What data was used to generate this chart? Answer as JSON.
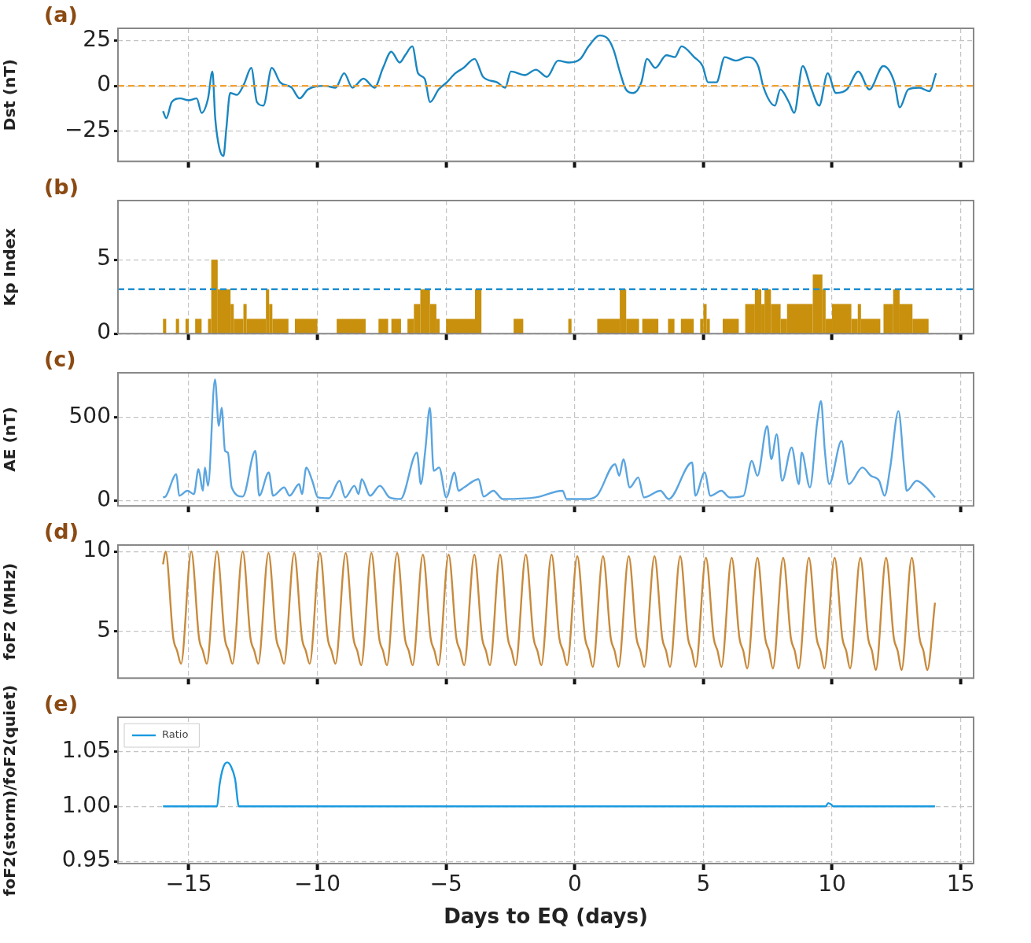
{
  "chart_data": [
    {
      "type": "line",
      "ylabel": "Dst (nT)",
      "annotations": [
        "(a)"
      ],
      "xlim": [
        -17.75,
        15.5
      ],
      "xticks": [
        {
          "value": -15,
          "label": null
        },
        {
          "value": -10,
          "label": null
        },
        {
          "value": -5,
          "label": null
        },
        {
          "value": 0,
          "label": null
        },
        {
          "value": 5,
          "label": null
        },
        {
          "value": 10,
          "label": null
        },
        {
          "value": 15,
          "label": null
        }
      ],
      "tick_labels": "y",
      "ylim": [
        -42,
        32
      ],
      "yticks": [
        {
          "value": -25,
          "label": "−25"
        },
        0,
        25
      ],
      "grid": true,
      "ref_lines": [
        {
          "axis": "y",
          "value": 0,
          "color": "#f0a030",
          "line_style": "dashed"
        }
      ],
      "series": [
        {
          "color": "#1a86c0",
          "x": [
            -16.0,
            -15.87,
            -15.66,
            -15.33,
            -15.0,
            -14.69,
            -14.5,
            -14.25,
            -14.08,
            -13.97,
            -13.82,
            -13.65,
            -13.54,
            -13.39,
            -13.13,
            -12.85,
            -12.57,
            -12.35,
            -12.1,
            -11.77,
            -11.45,
            -11.0,
            -10.69,
            -10.37,
            -9.72,
            -9.29,
            -8.96,
            -8.64,
            -8.21,
            -7.78,
            -7.45,
            -7.13,
            -6.8,
            -6.59,
            -6.31,
            -6.09,
            -5.83,
            -5.62,
            -5.29,
            -4.97,
            -4.64,
            -4.32,
            -3.89,
            -3.56,
            -3.02,
            -2.7,
            -2.48,
            -1.94,
            -1.51,
            -1.08,
            -0.65,
            -0.22,
            0.22,
            0.54,
            0.97,
            1.3,
            1.51,
            1.77,
            1.99,
            2.27,
            2.59,
            2.81,
            3.13,
            3.56,
            3.89,
            4.15,
            4.64,
            4.97,
            5.18,
            5.51,
            5.83,
            6.26,
            6.7,
            7.13,
            7.34,
            7.78,
            7.99,
            8.32,
            8.53,
            8.86,
            9.18,
            9.5,
            9.83,
            10.15,
            10.58,
            11.02,
            11.45,
            11.99,
            12.42,
            12.63,
            12.96,
            13.39,
            13.78,
            14.04
          ],
          "values": [
            -14,
            -18,
            -9,
            -7,
            -8,
            -7,
            -15,
            -7,
            8,
            -18,
            -34,
            -39,
            -24,
            -4,
            -5,
            1,
            10,
            -9,
            -11,
            10,
            2,
            -1,
            -7,
            -2,
            0,
            -1,
            7,
            -1,
            4,
            -1,
            10,
            19,
            13,
            17,
            22,
            7,
            4,
            -9,
            -2,
            2,
            7,
            10,
            15,
            5,
            2,
            -1,
            8,
            6,
            9,
            5,
            14,
            13,
            15,
            22,
            28,
            26,
            20,
            7,
            -2,
            -4,
            2,
            15,
            10,
            17,
            16,
            22,
            16,
            11,
            2,
            2,
            16,
            14,
            16,
            11,
            -1,
            -11,
            -2,
            -9,
            -15,
            11,
            -1,
            -11,
            7,
            -4,
            -2,
            8,
            -2,
            11,
            2,
            -12,
            -2,
            -1,
            -3,
            7
          ]
        }
      ]
    },
    {
      "type": "histogram",
      "ylabel": "Kp Index",
      "annotations": [
        "(b)"
      ],
      "xlim": [
        -17.75,
        15.5
      ],
      "xticks": [
        {
          "value": -15,
          "label": null
        },
        {
          "value": -10,
          "label": null
        },
        {
          "value": -5,
          "label": null
        },
        {
          "value": 0,
          "label": null
        },
        {
          "value": 5,
          "label": null
        },
        {
          "value": 10,
          "label": null
        },
        {
          "value": 15,
          "label": null
        }
      ],
      "tick_labels": "y",
      "ylim": [
        0,
        9
      ],
      "yticks": [
        0,
        5
      ],
      "grid": true,
      "color": "#c8900c",
      "ref_lines": [
        {
          "axis": "y",
          "value": 3,
          "color": "#1f8fd0",
          "line_style": "dashed"
        }
      ],
      "bins": [
        -16.0,
        -15.875,
        -15.5,
        -15.375,
        -15.125,
        -15.0,
        -14.75,
        -14.5,
        -14.25,
        -14.125,
        -13.875,
        -13.375,
        -13.25,
        -12.875,
        -12.75,
        -12.0,
        -11.875,
        -11.75,
        -11.125,
        -10.875,
        -10.0,
        -9.25,
        -8.125,
        -7.625,
        -7.25,
        -7.125,
        -6.75,
        -6.5,
        -6.25,
        -6.0,
        -5.625,
        -5.375,
        -5.25,
        -5.0,
        -3.875,
        -3.625,
        -2.375,
        -2.0,
        -0.25,
        -0.125,
        0.875,
        1.75,
        2.0,
        2.5,
        2.625,
        3.25,
        3.625,
        3.875,
        4.125,
        4.625,
        4.875,
        5.0,
        5.125,
        5.25,
        5.75,
        6.375,
        6.625,
        7.0,
        7.25,
        7.375,
        7.625,
        8.0,
        8.25,
        9.25,
        9.625,
        9.75,
        10.0,
        10.75,
        11.0,
        11.125,
        11.875,
        12.0,
        12.375,
        12.625,
        13.125,
        13.75
      ],
      "values": [
        1,
        0,
        1,
        0,
        1,
        0,
        1,
        0,
        1,
        5,
        3,
        2,
        1,
        2,
        1,
        3,
        2,
        1,
        0,
        1,
        0,
        1,
        0,
        1,
        0,
        1,
        0,
        1,
        2,
        3,
        2,
        1,
        0,
        1,
        3,
        0,
        1,
        0,
        1,
        0,
        1,
        3,
        1,
        0,
        1,
        0,
        1,
        0,
        1,
        0,
        1,
        2,
        1,
        0,
        1,
        0,
        2,
        3,
        2,
        3,
        2,
        1,
        2,
        4,
        3,
        1,
        2,
        1,
        2,
        1,
        0,
        2,
        3,
        2,
        1
      ]
    },
    {
      "type": "line",
      "ylabel": "AE (nT)",
      "annotations": [
        "(c)"
      ],
      "xlim": [
        -17.75,
        15.5
      ],
      "xticks": [
        {
          "value": -15,
          "label": null
        },
        {
          "value": -10,
          "label": null
        },
        {
          "value": -5,
          "label": null
        },
        {
          "value": 0,
          "label": null
        },
        {
          "value": 5,
          "label": null
        },
        {
          "value": 10,
          "label": null
        },
        {
          "value": 15,
          "label": null
        }
      ],
      "tick_labels": "y",
      "ylim": [
        -31,
        770
      ],
      "yticks": [
        0,
        500
      ],
      "grid": true,
      "series": [
        {
          "color": "#5aa5e0",
          "x": [
            -16.0,
            -15.9,
            -15.48,
            -15.37,
            -15.05,
            -14.8,
            -14.62,
            -14.45,
            -14.37,
            -14.25,
            -13.98,
            -13.83,
            -13.72,
            -13.59,
            -13.48,
            -13.33,
            -12.9,
            -12.41,
            -12.26,
            -11.89,
            -11.72,
            -11.29,
            -11.08,
            -10.71,
            -10.6,
            -10.43,
            -10.2,
            -9.98,
            -9.55,
            -9.14,
            -8.92,
            -8.56,
            -8.4,
            -8.28,
            -7.95,
            -7.57,
            -7.2,
            -6.77,
            -6.13,
            -5.98,
            -5.81,
            -5.63,
            -5.48,
            -5.27,
            -4.99,
            -4.67,
            -4.52,
            -4.3,
            -3.74,
            -3.54,
            -3.16,
            -2.8,
            -1.51,
            -0.47,
            -0.32,
            0.43,
            0.86,
            1.57,
            1.73,
            1.89,
            2.14,
            2.47,
            2.69,
            3.33,
            3.65,
            4.56,
            4.69,
            5.05,
            5.27,
            5.7,
            6.02,
            6.56,
            6.88,
            7.1,
            7.48,
            7.64,
            7.85,
            8.06,
            8.43,
            8.71,
            8.82,
            9.14,
            9.42,
            9.57,
            9.72,
            9.89,
            10.37,
            10.65,
            11.18,
            11.51,
            11.83,
            12.04,
            12.26,
            12.58,
            12.8,
            12.9,
            13.29,
            13.66,
            14.0
          ],
          "values": [
            20,
            25,
            160,
            30,
            60,
            40,
            190,
            60,
            200,
            90,
            730,
            450,
            560,
            300,
            290,
            80,
            25,
            300,
            30,
            170,
            30,
            80,
            30,
            100,
            40,
            200,
            120,
            20,
            15,
            120,
            20,
            90,
            40,
            130,
            30,
            90,
            20,
            10,
            290,
            100,
            300,
            560,
            180,
            200,
            20,
            170,
            60,
            80,
            130,
            25,
            60,
            10,
            20,
            60,
            10,
            10,
            30,
            220,
            150,
            250,
            80,
            140,
            20,
            60,
            10,
            230,
            30,
            170,
            30,
            60,
            20,
            30,
            240,
            150,
            450,
            250,
            400,
            120,
            320,
            100,
            290,
            80,
            470,
            600,
            300,
            100,
            360,
            100,
            200,
            150,
            120,
            30,
            200,
            540,
            200,
            60,
            120,
            80,
            20
          ]
        }
      ]
    },
    {
      "type": "line",
      "ylabel": "foF2 (MHz)",
      "annotations": [
        "(d)"
      ],
      "xlim": [
        -17.75,
        15.5
      ],
      "xticks": [
        {
          "value": -15,
          "label": null
        },
        {
          "value": -10,
          "label": null
        },
        {
          "value": -5,
          "label": null
        },
        {
          "value": 0,
          "label": null
        },
        {
          "value": 5,
          "label": null
        },
        {
          "value": 10,
          "label": null
        },
        {
          "value": 15,
          "label": null
        }
      ],
      "tick_labels": "y",
      "ylim": [
        2.1,
        10.4
      ],
      "yticks": [
        5,
        10
      ],
      "grid": true,
      "series": [
        {
          "color": "#c88a3c",
          "x": [
            -16.0,
            -15.9,
            -15.6,
            -15.45,
            -15.3,
            -14.9,
            -14.6,
            -14.45,
            -14.3,
            -13.9,
            -13.6,
            -13.45,
            -13.3,
            -12.9,
            -12.6,
            -12.45,
            -12.3,
            -11.9,
            -11.6,
            -11.45,
            -11.3,
            -10.9,
            -10.6,
            -10.45,
            -10.3,
            -9.9,
            -9.6,
            -9.45,
            -9.3,
            -8.9,
            -8.6,
            -8.45,
            -8.3,
            -7.9,
            -7.6,
            -7.45,
            -7.3,
            -6.9,
            -6.6,
            -6.45,
            -6.3,
            -5.9,
            -5.6,
            -5.45,
            -5.3,
            -4.9,
            -4.6,
            -4.45,
            -4.3,
            -3.9,
            -3.6,
            -3.45,
            -3.3,
            -2.9,
            -2.6,
            -2.45,
            -2.3,
            -1.9,
            -1.6,
            -1.45,
            -1.3,
            -0.9,
            -0.6,
            -0.45,
            -0.3,
            0.1,
            0.4,
            0.55,
            0.7,
            1.1,
            1.4,
            1.55,
            1.7,
            2.1,
            2.4,
            2.55,
            2.7,
            3.1,
            3.4,
            3.55,
            3.7,
            4.1,
            4.4,
            4.55,
            4.7,
            5.1,
            5.4,
            5.55,
            5.7,
            6.1,
            6.4,
            6.55,
            6.7,
            7.1,
            7.4,
            7.55,
            7.7,
            8.1,
            8.4,
            8.55,
            8.7,
            9.1,
            9.4,
            9.55,
            9.7,
            10.1,
            10.4,
            10.55,
            10.7,
            11.1,
            11.4,
            11.55,
            11.7,
            12.1,
            12.4,
            12.55,
            12.7,
            13.1,
            13.4,
            13.55,
            13.7,
            14.0
          ],
          "values": [
            9.2,
            10.0,
            4.6,
            3.8,
            3.0,
            10.0,
            4.6,
            3.8,
            3.0,
            10.0,
            4.6,
            3.8,
            3.0,
            10.0,
            4.6,
            3.8,
            3.0,
            9.9,
            4.6,
            3.8,
            3.0,
            9.9,
            4.6,
            3.8,
            3.0,
            9.9,
            4.6,
            3.8,
            3.0,
            9.9,
            4.6,
            3.8,
            2.9,
            9.9,
            4.6,
            3.8,
            2.9,
            9.9,
            4.6,
            3.8,
            2.9,
            9.8,
            4.6,
            3.8,
            2.9,
            9.8,
            4.6,
            3.8,
            2.9,
            9.8,
            4.6,
            3.8,
            2.9,
            9.8,
            4.6,
            3.8,
            2.9,
            9.8,
            4.6,
            3.8,
            2.9,
            9.8,
            4.6,
            3.8,
            2.9,
            9.7,
            4.6,
            3.8,
            2.8,
            9.7,
            4.6,
            3.8,
            2.8,
            9.7,
            4.6,
            3.8,
            2.8,
            9.7,
            4.6,
            3.8,
            2.8,
            9.7,
            4.6,
            3.8,
            2.8,
            9.6,
            4.6,
            3.8,
            2.8,
            9.6,
            4.6,
            3.8,
            2.7,
            9.6,
            4.6,
            3.8,
            2.7,
            9.6,
            4.6,
            3.8,
            2.7,
            9.6,
            4.6,
            3.8,
            2.7,
            9.6,
            4.6,
            3.8,
            2.7,
            9.6,
            4.6,
            3.8,
            2.6,
            9.6,
            4.6,
            3.8,
            2.6,
            9.6,
            4.6,
            3.8,
            2.6,
            6.8
          ]
        }
      ]
    },
    {
      "type": "line",
      "ylabel": "foF2(storm)/foF2(quiet)",
      "xlabel": "Days to EQ (days)",
      "annotations": [
        "(e)"
      ],
      "xlim": [
        -17.75,
        15.5
      ],
      "xticks": [
        {
          "value": -15,
          "label": "−15"
        },
        {
          "value": -10,
          "label": "−10"
        },
        {
          "value": -5,
          "label": "−5"
        },
        0,
        5,
        10,
        15
      ],
      "ylim": [
        0.948,
        1.081
      ],
      "yticks": [
        {
          "value": 0.95,
          "label": "0.95"
        },
        {
          "value": 1.0,
          "label": "1.00"
        },
        {
          "value": 1.05,
          "label": "1.05"
        }
      ],
      "grid": true,
      "legend": "top left",
      "series": [
        {
          "name": "Ratio",
          "color": "#1a9ae0",
          "x": [
            -16.0,
            -13.9,
            -13.8,
            -13.65,
            -13.5,
            -13.35,
            -13.2,
            -13.05,
            9.75,
            9.85,
            9.95,
            10.05,
            14.0
          ],
          "values": [
            1.0,
            1.0,
            1.02,
            1.036,
            1.04,
            1.036,
            1.025,
            1.0,
            1.0,
            1.003,
            1.002,
            1.0,
            1.0
          ]
        }
      ]
    }
  ]
}
